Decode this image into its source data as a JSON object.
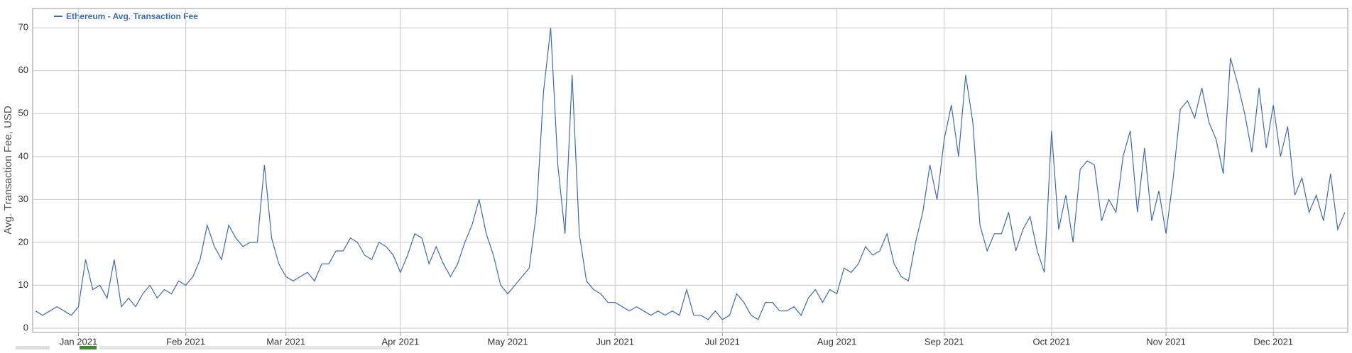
{
  "chart_data": {
    "type": "line",
    "y_label": "Avg. Transaction Fee, USD",
    "categories": [
      null,
      null,
      null,
      null,
      null,
      null,
      "Jan 2021",
      null,
      null,
      null,
      null,
      null,
      null,
      null,
      null,
      null,
      null,
      null,
      null,
      null,
      null,
      "Feb 2021",
      null,
      null,
      null,
      null,
      null,
      null,
      null,
      null,
      null,
      null,
      null,
      null,
      null,
      "Mar 2021",
      null,
      null,
      null,
      null,
      null,
      null,
      null,
      null,
      null,
      null,
      null,
      null,
      null,
      null,
      null,
      "Apr 2021",
      null,
      null,
      null,
      null,
      null,
      null,
      null,
      null,
      null,
      null,
      null,
      null,
      null,
      null,
      "May 2021",
      null,
      null,
      null,
      null,
      null,
      null,
      null,
      null,
      null,
      null,
      null,
      null,
      null,
      null,
      "Jun 2021",
      null,
      null,
      null,
      null,
      null,
      null,
      null,
      null,
      null,
      null,
      null,
      null,
      null,
      null,
      "Jul 2021",
      null,
      null,
      null,
      null,
      null,
      null,
      null,
      null,
      null,
      null,
      null,
      null,
      null,
      null,
      null,
      "Aug 2021",
      null,
      null,
      null,
      null,
      null,
      null,
      null,
      null,
      null,
      null,
      null,
      null,
      null,
      null,
      "Sep 2021",
      null,
      null,
      null,
      null,
      null,
      null,
      null,
      null,
      null,
      null,
      null,
      null,
      null,
      null,
      "Oct 2021",
      null,
      null,
      null,
      null,
      null,
      null,
      null,
      null,
      null,
      null,
      null,
      null,
      null,
      null,
      null,
      "Nov 2021",
      null,
      null,
      null,
      null,
      null,
      null,
      null,
      null,
      null,
      null,
      null,
      null,
      null,
      null,
      "Dec 2021",
      null,
      null,
      null,
      null,
      null,
      null,
      null,
      null,
      null,
      null
    ],
    "series": [
      {
        "name": "Ethereum - Avg. Transaction Fee",
        "color": "#3b6bb5",
        "values": [
          4,
          3,
          4,
          5,
          4,
          3,
          5,
          16,
          9,
          10,
          7,
          16,
          5,
          7,
          5,
          8,
          10,
          7,
          9,
          8,
          11,
          10,
          12,
          16,
          24,
          19,
          16,
          24,
          21,
          19,
          20,
          20,
          38,
          21,
          15,
          12,
          11,
          12,
          13,
          11,
          15,
          15,
          18,
          18,
          21,
          20,
          17,
          16,
          20,
          19,
          17,
          13,
          17,
          22,
          21,
          15,
          19,
          15,
          12,
          15,
          20,
          24,
          30,
          22,
          17,
          10,
          8,
          10,
          12,
          14,
          27,
          55,
          70,
          38,
          22,
          59,
          22,
          11,
          9,
          8,
          6,
          6,
          5,
          4,
          5,
          4,
          3,
          4,
          3,
          4,
          3,
          9,
          3,
          3,
          2,
          4,
          2,
          3,
          8,
          6,
          3,
          2,
          6,
          6,
          4,
          4,
          5,
          3,
          7,
          9,
          6,
          9,
          8,
          14,
          13,
          15,
          19,
          17,
          18,
          22,
          15,
          12,
          11,
          20,
          27,
          38,
          30,
          44,
          52,
          40,
          59,
          48,
          24,
          18,
          22,
          22,
          27,
          18,
          23,
          26,
          18,
          13,
          46,
          23,
          31,
          20,
          37,
          39,
          38,
          25,
          30,
          27,
          40,
          46,
          27,
          42,
          25,
          32,
          22,
          35,
          51,
          53,
          49,
          56,
          48,
          44,
          36,
          63,
          57,
          50,
          41,
          56,
          42,
          52,
          40,
          47,
          31,
          35,
          27,
          31,
          25,
          36,
          23,
          27
        ]
      }
    ],
    "ylim": [
      -1,
      74.5
    ],
    "yticks": [
      0,
      10,
      20,
      30,
      40,
      50,
      60,
      70
    ],
    "grid": true
  }
}
